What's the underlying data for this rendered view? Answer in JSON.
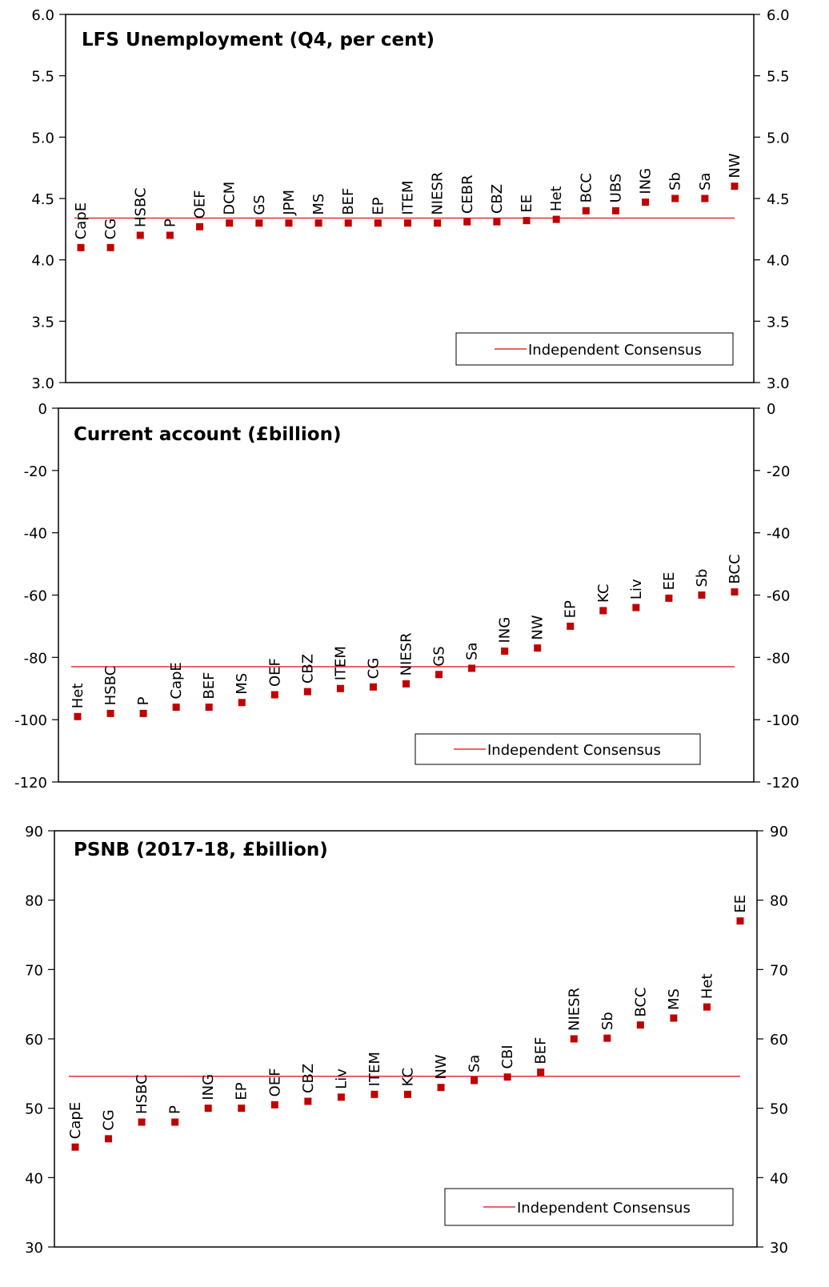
{
  "colors": {
    "marker": "#C00000",
    "consensus_line": "#E03030",
    "axis": "#000000"
  },
  "chart_data": [
    {
      "type": "scatter",
      "title": "LFS Unemployment  (Q4, per cent)",
      "ylim": [
        3.0,
        6.0
      ],
      "yticks": [
        "3.0",
        "3.5",
        "4.0",
        "4.5",
        "5.0",
        "5.5",
        "6.0"
      ],
      "categories": [
        "CapE",
        "CG",
        "HSBC",
        "P",
        "OEF",
        "DCM",
        "GS",
        "JPM",
        "MS",
        "BEF",
        "EP",
        "ITEM",
        "NIESR",
        "CEBR",
        "CBZ",
        "EE",
        "Het",
        "BCC",
        "UBS",
        "ING",
        "Sb",
        "Sa",
        "NW"
      ],
      "values": [
        4.1,
        4.1,
        4.2,
        4.2,
        4.27,
        4.3,
        4.3,
        4.3,
        4.3,
        4.3,
        4.3,
        4.3,
        4.3,
        4.31,
        4.31,
        4.32,
        4.33,
        4.4,
        4.4,
        4.47,
        4.5,
        4.5,
        4.6
      ],
      "consensus": 4.34,
      "legend": {
        "label": "Independent Consensus",
        "position": "bottom-right"
      },
      "grid": false
    },
    {
      "type": "scatter",
      "title": "Current account (£billion)",
      "ylim": [
        -120,
        0
      ],
      "yticks": [
        "-120",
        "-100",
        "-80",
        "-60",
        "-40",
        "-20",
        "0"
      ],
      "categories": [
        "Het",
        "HSBC",
        "P",
        "CapE",
        "BEF",
        "MS",
        "OEF",
        "CBZ",
        "ITEM",
        "CG",
        "NIESR",
        "GS",
        "Sa",
        "ING",
        "NW",
        "EP",
        "KC",
        "Liv",
        "EE",
        "Sb",
        "BCC"
      ],
      "values": [
        -99,
        -98,
        -98,
        -96,
        -96,
        -94.5,
        -92,
        -91,
        -90,
        -89.5,
        -88.5,
        -85.5,
        -83.5,
        -78,
        -77,
        -70,
        -65,
        -64,
        -61,
        -60,
        -59
      ],
      "consensus": -83,
      "legend": {
        "label": "Independent Consensus",
        "position": "bottom-right"
      },
      "grid": false
    },
    {
      "type": "scatter",
      "title": "PSNB (2017-18, £billion)",
      "ylim": [
        30,
        90
      ],
      "yticks": [
        "30",
        "40",
        "50",
        "60",
        "70",
        "80",
        "90"
      ],
      "categories": [
        "CapE",
        "CG",
        "HSBC",
        "P",
        "ING",
        "EP",
        "OEF",
        "CBZ",
        "Liv",
        "ITEM",
        "KC",
        "NW",
        "Sa",
        "CBI",
        "BEF",
        "NIESR",
        "Sb",
        "BCC",
        "MS",
        "Het",
        "EE"
      ],
      "values": [
        44.4,
        45.6,
        48,
        48,
        50,
        50,
        50.5,
        51,
        51.6,
        52,
        52,
        53,
        54,
        54.5,
        55.2,
        60,
        60.1,
        62,
        63,
        64.6,
        77
      ],
      "consensus": 54.6,
      "legend": {
        "label": "Independent Consensus",
        "position": "bottom-right"
      },
      "grid": false
    }
  ]
}
